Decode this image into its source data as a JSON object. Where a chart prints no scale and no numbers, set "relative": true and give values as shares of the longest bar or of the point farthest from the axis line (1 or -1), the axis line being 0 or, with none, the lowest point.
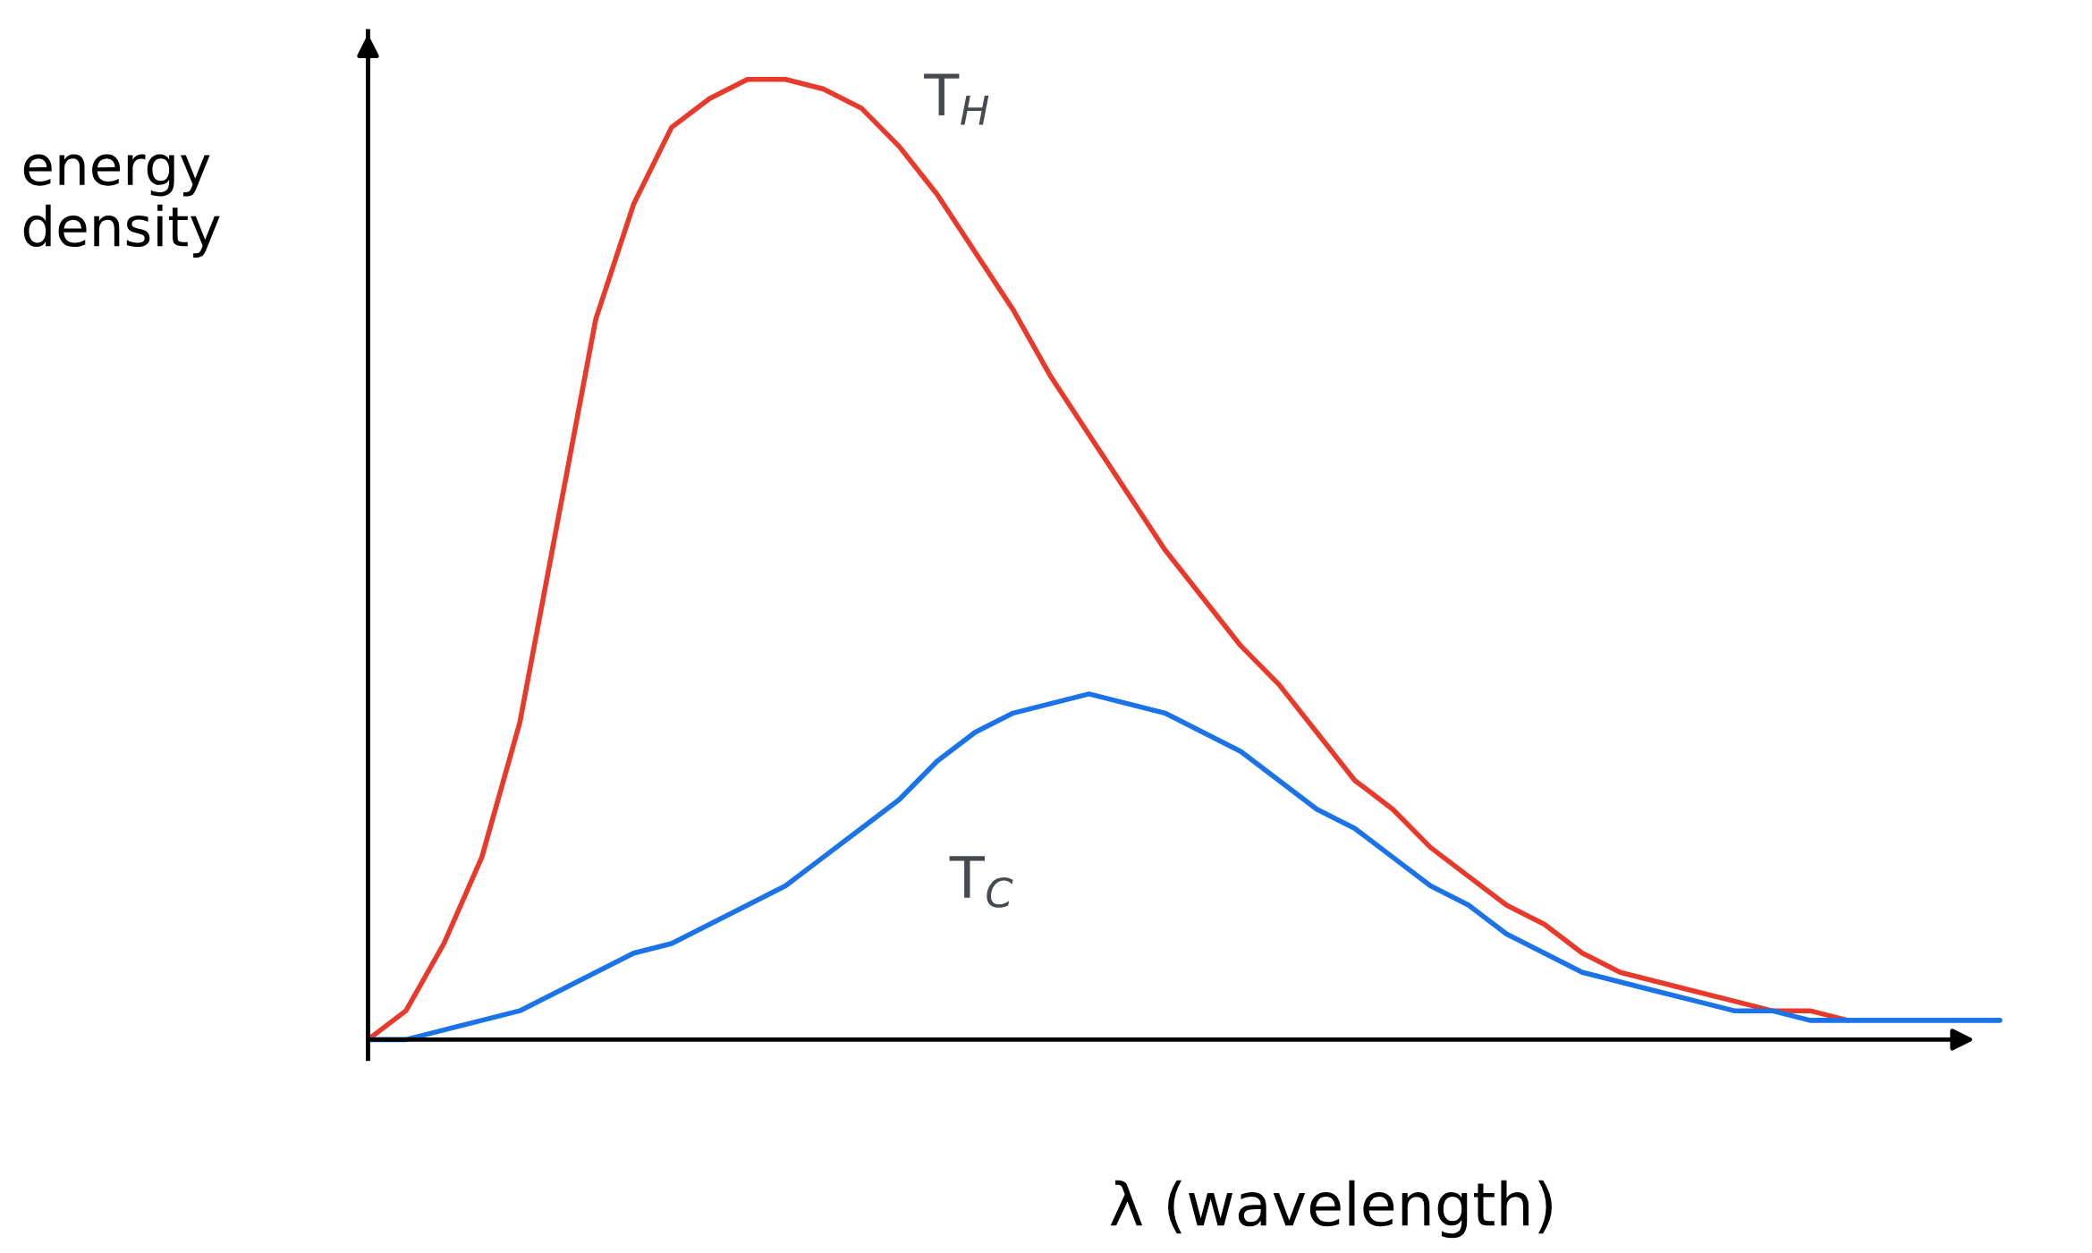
{
  "chart_data": {
    "type": "line",
    "relative": true,
    "xlabel": "λ (wavelength)",
    "ylabel": "energy\ndensity",
    "categories": [
      null,
      null,
      null,
      null,
      null,
      null,
      null,
      null,
      null,
      null,
      null,
      null,
      null,
      null,
      null,
      null,
      null,
      null,
      null,
      null,
      null,
      null,
      null,
      null,
      null,
      null,
      null,
      null,
      null,
      null,
      null,
      null,
      null,
      null,
      null,
      null,
      null,
      null,
      null,
      null,
      null,
      null,
      null,
      null
    ],
    "series": [
      {
        "name": "T$_{H}$",
        "color": "#e8392b",
        "values": [
          0.0,
          0.03,
          0.1,
          0.19,
          0.33,
          0.54,
          0.75,
          0.87,
          0.95,
          0.98,
          1.0,
          1.0,
          0.99,
          0.97,
          0.93,
          0.88,
          0.82,
          0.76,
          0.69,
          0.63,
          0.57,
          0.51,
          0.46,
          0.41,
          0.37,
          0.32,
          0.27,
          0.24,
          0.2,
          0.17,
          0.14,
          0.12,
          0.09,
          0.07,
          0.06,
          0.05,
          0.04,
          0.03,
          0.03,
          0.02,
          null,
          null,
          null,
          null
        ]
      },
      {
        "name": "T$_{C}$",
        "color": "#1a73e8",
        "values": [
          0.0,
          0.0,
          0.01,
          0.02,
          0.03,
          0.05,
          0.07,
          0.09,
          0.1,
          0.12,
          0.14,
          0.16,
          0.19,
          0.22,
          0.25,
          0.29,
          0.32,
          0.34,
          0.35,
          0.36,
          0.35,
          0.34,
          0.32,
          0.3,
          0.27,
          0.24,
          0.22,
          0.19,
          0.16,
          0.14,
          0.11,
          0.09,
          0.07,
          0.06,
          0.05,
          0.04,
          0.03,
          0.03,
          0.02,
          0.02,
          0.02,
          0.02,
          0.02,
          0.02
        ]
      }
    ]
  }
}
